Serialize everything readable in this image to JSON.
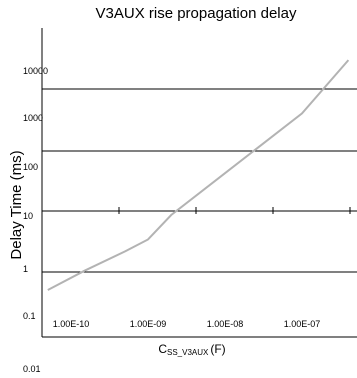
{
  "chart_data": {
    "type": "line",
    "title": "V3AUX    rise propagation delay",
    "xlabel": {
      "main": "C",
      "subscript": "SS_V3AUX",
      "suffix": "(F)"
    },
    "ylabel": "Delay Time (ms)",
    "x_scale": "log",
    "y_scale": "log",
    "xlim": [
      1e-10,
      4e-07
    ],
    "ylim": [
      0.01,
      10000
    ],
    "x_ticks": [
      {
        "value": 1e-10,
        "label": "1.00E-10"
      },
      {
        "value": 1e-09,
        "label": "1.00E-09"
      },
      {
        "value": 1e-08,
        "label": "1.00E-08"
      },
      {
        "value": 1e-07,
        "label": "1.00E-07"
      }
    ],
    "y_ticks": [
      {
        "value": 10000,
        "label": "10000"
      },
      {
        "value": 1000,
        "label": "1000"
      },
      {
        "value": 100,
        "label": "100"
      },
      {
        "value": 10,
        "label": "10"
      },
      {
        "value": 1,
        "label": "1"
      },
      {
        "value": 0.1,
        "label": "0.1"
      },
      {
        "value": 0.01,
        "label": "0.01"
      }
    ],
    "colors": {
      "curve": "#b3b3b3",
      "grid": "#000000"
    },
    "series": [
      {
        "x": [
          5e-11,
          1.5e-10,
          5e-10,
          1e-09,
          2e-09,
          1e-08,
          1e-07,
          4e-07
        ],
        "y": [
          0.5,
          1.05,
          2.2,
          3.5,
          9,
          45,
          450,
          3500
        ]
      }
    ]
  }
}
